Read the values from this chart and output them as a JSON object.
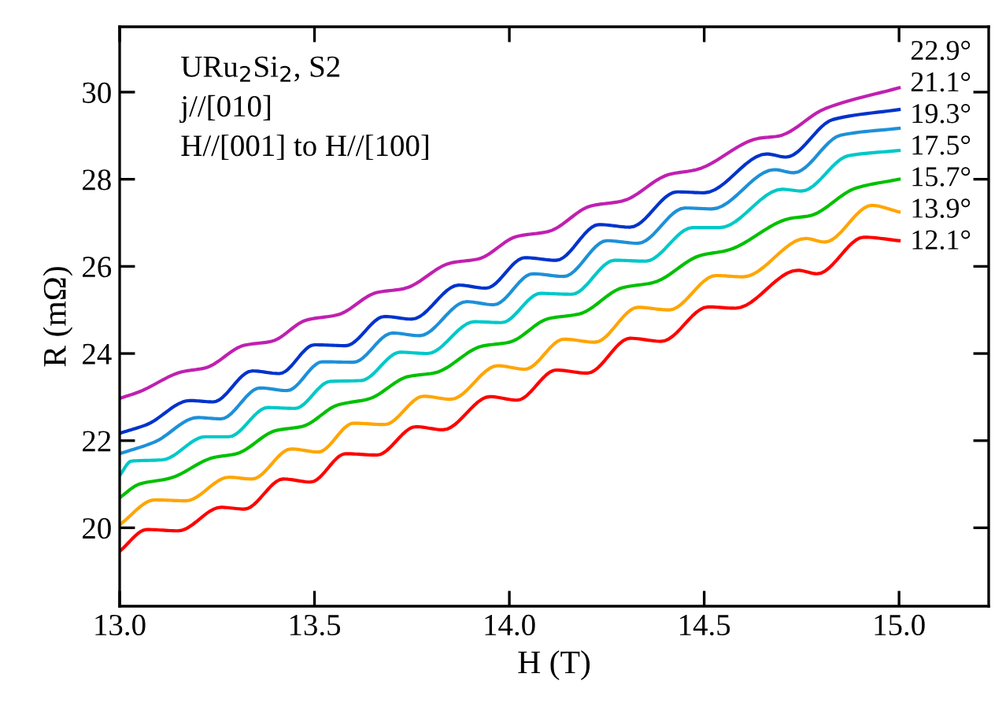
{
  "chart_data": {
    "type": "line",
    "xlabel": "H (T)",
    "ylabel": "R (mΩ)",
    "annotations": [
      "URu$_{2}$Si$_{2}$, S2",
      "j//[010]",
      "H//[001] to H//[100]"
    ],
    "xlim": [
      13.0,
      15.23
    ],
    "ylim": [
      18.2,
      31.5
    ],
    "xticks": [
      {
        "value": 13,
        "label": "13.0"
      },
      {
        "value": 13.5,
        "label": "13.5"
      },
      {
        "value": 14,
        "label": "14.0"
      },
      {
        "value": 14.5,
        "label": "14.5"
      },
      {
        "value": 15,
        "label": "15.0"
      }
    ],
    "yticks": [
      20,
      22,
      24,
      26,
      28,
      30
    ],
    "grid": false,
    "legend": false,
    "marker": "none",
    "line_style": "solid",
    "series": [
      {
        "name": "12.1°",
        "color": "#ff0000",
        "x": [
          13.0,
          13.07,
          13.15,
          13.26,
          13.32,
          13.42,
          13.49,
          13.58,
          13.66,
          13.76,
          13.83,
          13.95,
          14.02,
          14.12,
          14.2,
          14.31,
          14.39,
          14.51,
          14.58,
          14.74,
          14.79,
          14.91,
          15.0
        ],
        "values": [
          19.46,
          19.96,
          19.93,
          20.47,
          20.43,
          21.12,
          21.05,
          21.7,
          21.67,
          22.32,
          22.25,
          23.01,
          22.93,
          23.62,
          23.55,
          24.35,
          24.28,
          25.07,
          25.04,
          25.91,
          25.83,
          26.67,
          26.59
        ]
      },
      {
        "name": "13.9°",
        "color": "#ffa500",
        "x": [
          13.0,
          13.09,
          13.17,
          13.28,
          13.34,
          13.44,
          13.51,
          13.6,
          13.68,
          13.78,
          13.85,
          13.97,
          14.04,
          14.14,
          14.22,
          14.33,
          14.41,
          14.53,
          14.6,
          14.76,
          14.81,
          14.93,
          15.0
        ],
        "values": [
          20.07,
          20.64,
          20.62,
          21.16,
          21.12,
          21.81,
          21.74,
          22.4,
          22.37,
          23.02,
          22.95,
          23.72,
          23.64,
          24.33,
          24.26,
          25.06,
          25.0,
          25.79,
          25.76,
          26.64,
          26.56,
          27.4,
          27.25
        ]
      },
      {
        "name": "15.7°",
        "color": "#00c000",
        "x": [
          13.0,
          13.05,
          13.13,
          13.24,
          13.3,
          13.4,
          13.47,
          13.56,
          13.64,
          13.74,
          13.81,
          13.93,
          14.0,
          14.1,
          14.18,
          14.29,
          14.37,
          14.49,
          14.56,
          14.72,
          14.77,
          14.89,
          15.0
        ],
        "values": [
          20.69,
          21.0,
          21.14,
          21.61,
          21.7,
          22.23,
          22.33,
          22.82,
          22.96,
          23.47,
          23.56,
          24.17,
          24.26,
          24.8,
          24.91,
          25.51,
          25.63,
          26.25,
          26.37,
          27.1,
          27.16,
          27.8,
          28.0
        ]
      },
      {
        "name": "17.5°",
        "color": "#00c8c8",
        "x": [
          13.0,
          13.03,
          13.11,
          13.22,
          13.28,
          13.38,
          13.45,
          13.54,
          13.62,
          13.72,
          13.79,
          13.91,
          13.98,
          14.08,
          14.16,
          14.27,
          14.35,
          14.47,
          14.54,
          14.7,
          14.75,
          14.87,
          15.0
        ],
        "values": [
          21.2,
          21.53,
          21.56,
          22.09,
          22.09,
          22.76,
          22.74,
          23.36,
          23.38,
          24.03,
          24.0,
          24.73,
          24.71,
          25.38,
          25.36,
          26.14,
          26.12,
          26.89,
          26.89,
          27.77,
          27.73,
          28.54,
          28.66
        ]
      },
      {
        "name": "19.3°",
        "color": "#1e90d8",
        "x": [
          13.0,
          13.09,
          13.2,
          13.26,
          13.36,
          13.43,
          13.52,
          13.6,
          13.7,
          13.77,
          13.89,
          13.96,
          14.06,
          14.14,
          14.25,
          14.33,
          14.45,
          14.52,
          14.68,
          14.73,
          14.85,
          15.0
        ],
        "values": [
          21.7,
          21.97,
          22.53,
          22.5,
          23.21,
          23.15,
          23.81,
          23.8,
          24.47,
          24.41,
          25.19,
          25.12,
          25.83,
          25.77,
          26.59,
          26.53,
          27.34,
          27.32,
          28.22,
          28.15,
          29.01,
          29.17
        ]
      },
      {
        "name": "21.1°",
        "color": "#0033cc",
        "x": [
          13.0,
          13.07,
          13.18,
          13.24,
          13.34,
          13.41,
          13.5,
          13.58,
          13.68,
          13.75,
          13.87,
          13.94,
          14.04,
          14.12,
          14.23,
          14.31,
          14.43,
          14.5,
          14.66,
          14.71,
          14.83,
          15.0
        ],
        "values": [
          22.17,
          22.37,
          22.92,
          22.89,
          23.6,
          23.54,
          24.2,
          24.18,
          24.85,
          24.79,
          25.57,
          25.5,
          26.2,
          26.14,
          26.96,
          26.9,
          27.71,
          27.69,
          28.58,
          28.51,
          29.37,
          29.6
        ]
      },
      {
        "name": "22.9°",
        "color": "#c020b0",
        "x": [
          13.0,
          13.05,
          13.16,
          13.22,
          13.32,
          13.39,
          13.48,
          13.56,
          13.66,
          13.73,
          13.85,
          13.92,
          14.02,
          14.1,
          14.21,
          14.29,
          14.41,
          14.48,
          14.64,
          14.69,
          14.81,
          15.0
        ],
        "values": [
          22.97,
          23.12,
          23.58,
          23.67,
          24.19,
          24.28,
          24.77,
          24.89,
          25.4,
          25.49,
          26.08,
          26.17,
          26.69,
          26.8,
          27.39,
          27.5,
          28.11,
          28.22,
          28.94,
          28.99,
          29.62,
          30.1
        ]
      }
    ]
  }
}
